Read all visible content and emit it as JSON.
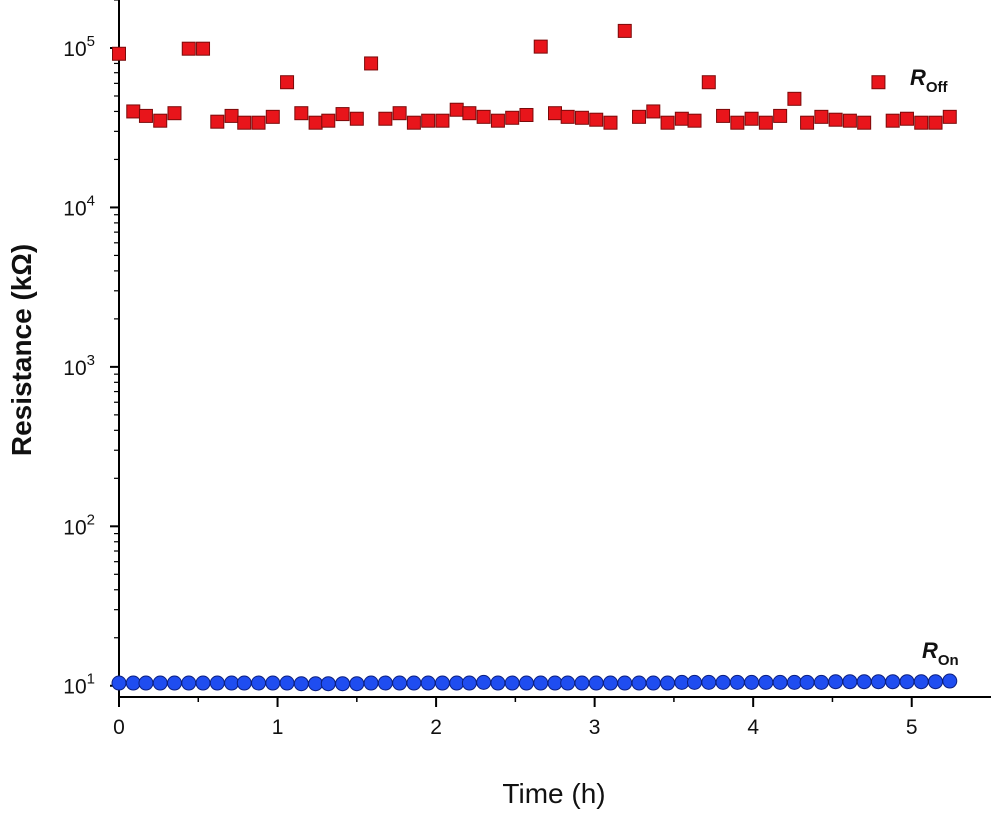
{
  "chart_data": {
    "type": "scatter",
    "xlabel": "Time (h)",
    "ylabel": "Resistance (kΩ)",
    "xlim": [
      0,
      5.5
    ],
    "ylim": [
      8.5,
      200000
    ],
    "yscale": "log",
    "x_ticks": [
      0,
      1,
      2,
      3,
      4,
      5
    ],
    "x_tick_labels": [
      "0",
      "1",
      "2",
      "3",
      "4",
      "5"
    ],
    "y_ticks": [
      10,
      100,
      1000,
      10000,
      100000
    ],
    "y_tick_labels": [
      {
        "base": "10",
        "exp": "1"
      },
      {
        "base": "10",
        "exp": "2"
      },
      {
        "base": "10",
        "exp": "3"
      },
      {
        "base": "10",
        "exp": "4"
      },
      {
        "base": "10",
        "exp": "5"
      }
    ],
    "grid": false,
    "series": [
      {
        "name": "R_Off",
        "label_main": "R",
        "label_sub": "Off",
        "marker": "square",
        "color": "#e8151b",
        "edge_color": "#7a0a0a",
        "x": [
          0.0,
          0.09,
          0.17,
          0.26,
          0.35,
          0.44,
          0.53,
          0.62,
          0.71,
          0.79,
          0.88,
          0.97,
          1.06,
          1.15,
          1.24,
          1.32,
          1.41,
          1.5,
          1.59,
          1.68,
          1.77,
          1.86,
          1.95,
          2.04,
          2.13,
          2.21,
          2.3,
          2.39,
          2.48,
          2.57,
          2.66,
          2.75,
          2.83,
          2.92,
          3.01,
          3.1,
          3.19,
          3.28,
          3.37,
          3.46,
          3.55,
          3.63,
          3.72,
          3.81,
          3.9,
          3.99,
          4.08,
          4.17,
          4.26,
          4.34,
          4.43,
          4.52,
          4.61,
          4.7,
          4.79,
          4.88,
          4.97,
          5.06,
          5.15,
          5.24
        ],
        "y": [
          92000,
          40000,
          37500,
          35000,
          39000,
          99000,
          99000,
          34500,
          37500,
          34000,
          34000,
          37000,
          61000,
          39000,
          34000,
          35000,
          38500,
          36000,
          80000,
          36000,
          39000,
          34000,
          35000,
          35000,
          41000,
          39000,
          37000,
          35000,
          36500,
          38000,
          102000,
          39000,
          37000,
          36500,
          35500,
          34000,
          128000,
          37000,
          40000,
          34000,
          36000,
          35000,
          61000,
          37500,
          34000,
          36000,
          34000,
          37500,
          48000,
          34000,
          37000,
          35500,
          35000,
          34000,
          61000,
          35000,
          36000,
          34000,
          34000,
          37000
        ]
      },
      {
        "name": "R_On",
        "label_main": "R",
        "label_sub": "On",
        "marker": "circle",
        "color": "#1f4df0",
        "edge_color": "#0b1f80",
        "x": [
          0.0,
          0.09,
          0.17,
          0.26,
          0.35,
          0.44,
          0.53,
          0.62,
          0.71,
          0.79,
          0.88,
          0.97,
          1.06,
          1.15,
          1.24,
          1.32,
          1.41,
          1.5,
          1.59,
          1.68,
          1.77,
          1.86,
          1.95,
          2.04,
          2.13,
          2.21,
          2.3,
          2.39,
          2.48,
          2.57,
          2.66,
          2.75,
          2.83,
          2.92,
          3.01,
          3.1,
          3.19,
          3.28,
          3.37,
          3.46,
          3.55,
          3.63,
          3.72,
          3.81,
          3.9,
          3.99,
          4.08,
          4.17,
          4.26,
          4.34,
          4.43,
          4.52,
          4.61,
          4.7,
          4.79,
          4.88,
          4.97,
          5.06,
          5.15,
          5.24
        ],
        "y": [
          10.4,
          10.4,
          10.4,
          10.4,
          10.4,
          10.4,
          10.4,
          10.4,
          10.4,
          10.4,
          10.4,
          10.4,
          10.4,
          10.3,
          10.3,
          10.3,
          10.3,
          10.3,
          10.4,
          10.4,
          10.4,
          10.4,
          10.4,
          10.4,
          10.4,
          10.4,
          10.5,
          10.4,
          10.4,
          10.4,
          10.4,
          10.4,
          10.4,
          10.4,
          10.4,
          10.4,
          10.4,
          10.4,
          10.4,
          10.4,
          10.5,
          10.5,
          10.5,
          10.5,
          10.5,
          10.5,
          10.5,
          10.5,
          10.5,
          10.5,
          10.5,
          10.6,
          10.6,
          10.6,
          10.6,
          10.6,
          10.6,
          10.6,
          10.6,
          10.7
        ]
      }
    ]
  }
}
